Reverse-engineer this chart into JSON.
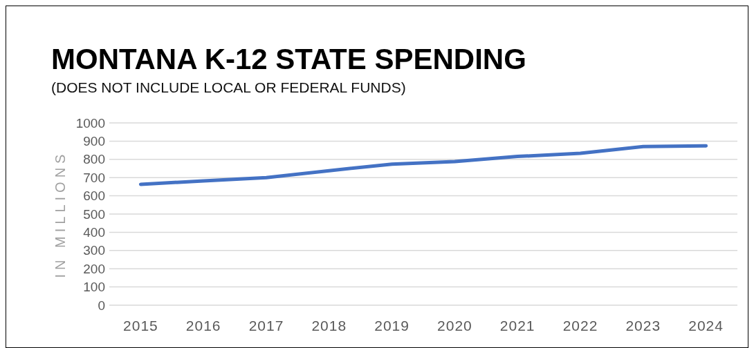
{
  "chart_data": {
    "type": "line",
    "title": "MONTANA K-12 STATE SPENDING",
    "subtitle": "(DOES NOT INCLUDE LOCAL OR FEDERAL FUNDS)",
    "ylabel": "IN MILLIONS",
    "categories": [
      "2015",
      "2016",
      "2017",
      "2018",
      "2019",
      "2020",
      "2021",
      "2022",
      "2023",
      "2024"
    ],
    "series": [
      {
        "color": "#4472c4",
        "values": [
          663,
          682,
          700,
          738,
          774,
          788,
          816,
          833,
          870,
          874
        ]
      }
    ],
    "ylim": [
      0,
      1000
    ],
    "yticks": [
      0,
      100,
      200,
      300,
      400,
      500,
      600,
      700,
      800,
      900,
      1000
    ],
    "grid": "y",
    "marker": "none",
    "line_style": "solid"
  }
}
